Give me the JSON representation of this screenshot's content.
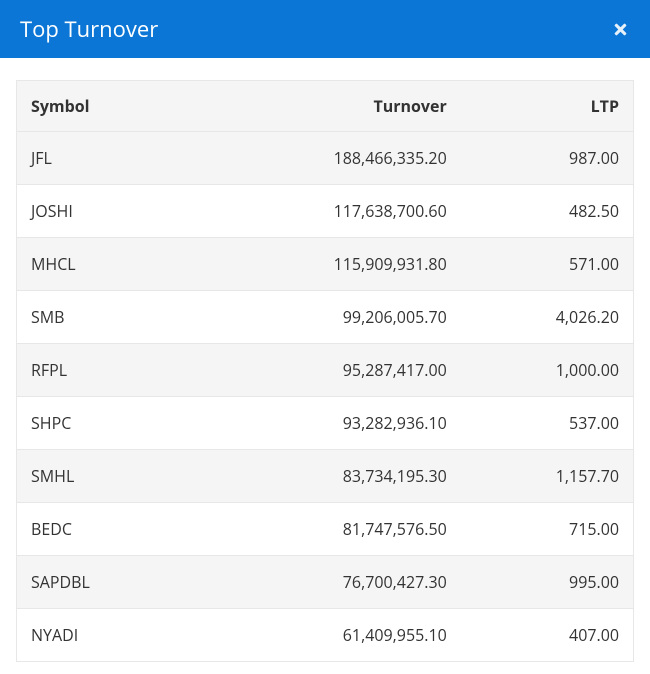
{
  "header": {
    "title": "Top Turnover",
    "accent_color": "#0c76d6",
    "title_color": "#ffffff"
  },
  "table": {
    "type": "table",
    "background_color": "#ffffff",
    "row_alt_color": "#f5f5f5",
    "border_color": "#e7e7e7",
    "text_color": "#333333",
    "header_fontweight": 700,
    "cell_fontsize": 16,
    "columns": [
      {
        "key": "symbol",
        "label": "Symbol",
        "align": "left",
        "width_pct": 32
      },
      {
        "key": "turnover",
        "label": "Turnover",
        "align": "right",
        "width_pct": 40
      },
      {
        "key": "ltp",
        "label": "LTP",
        "align": "right",
        "width_pct": 28
      }
    ],
    "rows": [
      {
        "symbol": "JFL",
        "turnover": "188,466,335.20",
        "ltp": "987.00"
      },
      {
        "symbol": "JOSHI",
        "turnover": "117,638,700.60",
        "ltp": "482.50"
      },
      {
        "symbol": "MHCL",
        "turnover": "115,909,931.80",
        "ltp": "571.00"
      },
      {
        "symbol": "SMB",
        "turnover": "99,206,005.70",
        "ltp": "4,026.20"
      },
      {
        "symbol": "RFPL",
        "turnover": "95,287,417.00",
        "ltp": "1,000.00"
      },
      {
        "symbol": "SHPC",
        "turnover": "93,282,936.10",
        "ltp": "537.00"
      },
      {
        "symbol": "SMHL",
        "turnover": "83,734,195.30",
        "ltp": "1,157.70"
      },
      {
        "symbol": "BEDC",
        "turnover": "81,747,576.50",
        "ltp": "715.00"
      },
      {
        "symbol": "SAPDBL",
        "turnover": "76,700,427.30",
        "ltp": "995.00"
      },
      {
        "symbol": "NYADI",
        "turnover": "61,409,955.10",
        "ltp": "407.00"
      }
    ]
  }
}
